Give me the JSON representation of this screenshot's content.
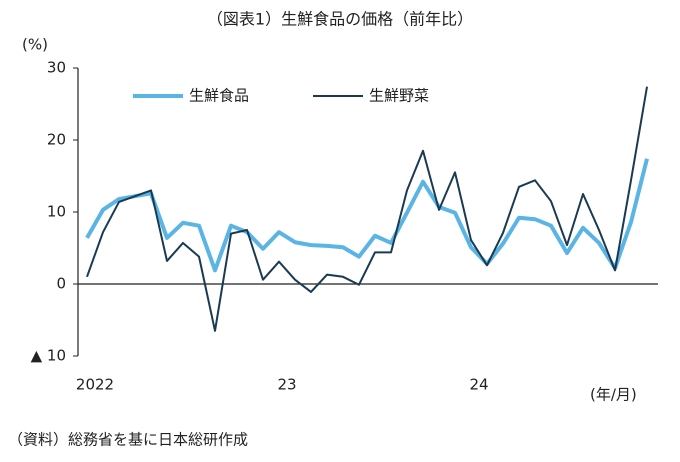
{
  "chart_data": {
    "type": "line",
    "title": "（図表1）生鮮食品の価格（前年比）",
    "y_label": "(%)",
    "x_label": "(年/月)",
    "source": "（資料）総務省を基に日本総研作成",
    "categories": [
      "2022",
      null,
      null,
      null,
      null,
      null,
      null,
      null,
      null,
      null,
      null,
      null,
      "23",
      null,
      null,
      null,
      null,
      null,
      null,
      null,
      null,
      null,
      null,
      null,
      "24",
      null,
      null,
      null,
      null,
      null,
      null,
      null,
      null,
      null,
      null,
      null
    ],
    "series": [
      {
        "name": "生鮮食品",
        "color": "#5ab4e5",
        "values": [
          6.4,
          10.3,
          11.8,
          12.2,
          12.6,
          6.4,
          8.5,
          8.1,
          1.9,
          8.1,
          7.2,
          4.9,
          7.2,
          5.8,
          5.4,
          5.3,
          5.1,
          3.8,
          6.7,
          5.7,
          9.9,
          14.2,
          10.7,
          9.9,
          5.1,
          2.8,
          5.6,
          9.2,
          9.0,
          8.1,
          4.3,
          7.8,
          5.7,
          2.2,
          8.6,
          17.4
        ]
      },
      {
        "name": "生鮮野菜",
        "color": "#1a3a52",
        "values": [
          1.0,
          7.2,
          11.4,
          12.2,
          13.0,
          3.2,
          5.7,
          3.8,
          -6.5,
          7.0,
          7.5,
          0.6,
          3.1,
          0.6,
          -1.1,
          1.3,
          1.0,
          -0.1,
          4.4,
          4.4,
          13.0,
          18.5,
          10.3,
          15.5,
          6.1,
          2.6,
          7.1,
          13.5,
          14.4,
          11.5,
          5.4,
          12.5,
          7.5,
          1.9,
          14.4,
          27.4
        ]
      }
    ],
    "ylim": [
      -10,
      30
    ],
    "yticks": [
      {
        "value": -10,
        "label": "▲ 10"
      },
      0,
      10,
      20,
      30
    ],
    "grid": false
  }
}
